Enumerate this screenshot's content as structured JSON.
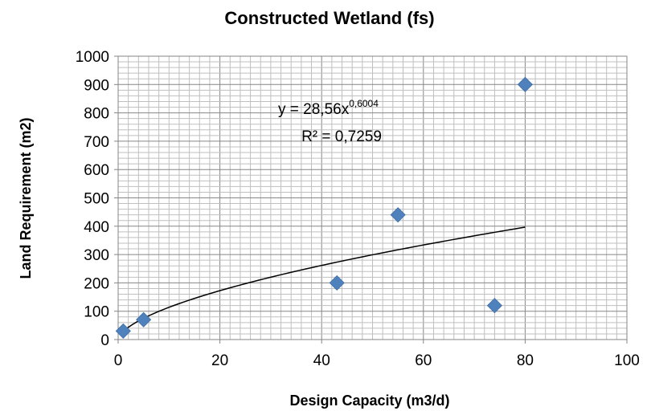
{
  "chart_data": {
    "type": "scatter",
    "title": "Constructed Wetland (fs)",
    "xlabel": "Design Capacity (m3/d)",
    "ylabel": "Land Requirement (m2)",
    "xlim": [
      0,
      100
    ],
    "ylim": [
      0,
      1000
    ],
    "x_ticks": [
      "0",
      "20",
      "40",
      "60",
      "80",
      "100"
    ],
    "y_ticks": [
      "0",
      "100",
      "200",
      "300",
      "400",
      "500",
      "600",
      "700",
      "800",
      "900",
      "1000"
    ],
    "grid": true,
    "legend": "none",
    "series": [
      {
        "x": [
          1,
          5,
          43,
          55,
          74,
          80
        ],
        "y": [
          30,
          70,
          200,
          440,
          120,
          900
        ],
        "color": "#4F81BD",
        "marker": "diamond"
      }
    ],
    "trendline": {
      "type": "power",
      "coefficient": 28.56,
      "exponent": 0.6004,
      "x_range": [
        1,
        80
      ],
      "equation_base": "y = 28,56x",
      "equation_exponent": "0,6004",
      "r_squared_label": "R² = 0,7259",
      "color": "#000000"
    }
  }
}
